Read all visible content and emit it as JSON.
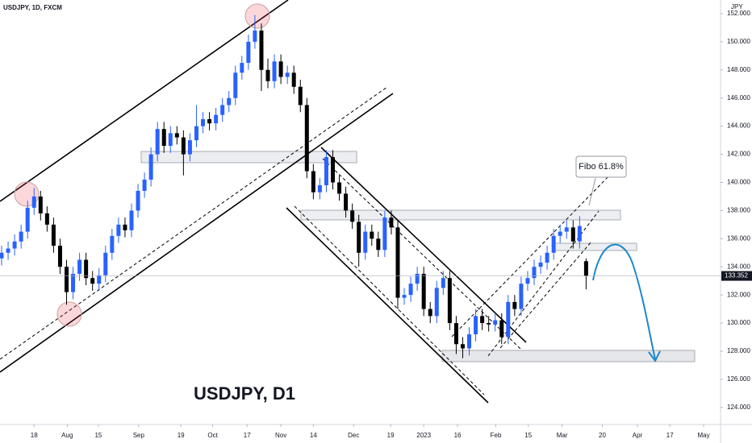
{
  "chart_data": {
    "type": "candlestick",
    "title": "USDJPY, 1D, FXCM",
    "y_axis_label": "JPY",
    "annotations": [
      "USDJPY, D1",
      "Fibo 61.8%"
    ],
    "up_color": "#2962ff",
    "down_color": "#000000",
    "open": [
      134.6,
      135.0,
      135.3,
      135.8,
      136.5,
      138.2,
      139.0,
      137.8,
      137.0,
      135.5,
      134.0,
      132.2,
      133.5,
      134.5,
      133.2,
      132.8,
      133.4,
      135.0,
      136.2,
      137.0,
      136.6,
      138.0,
      139.4,
      140.2,
      142.0,
      143.8,
      142.6,
      143.5,
      143.2,
      142.0,
      143.0,
      144.0,
      144.5,
      144.2,
      144.8,
      145.5,
      146.0,
      147.8,
      148.5,
      150.0,
      150.8,
      148.0,
      147.2,
      148.6,
      147.5,
      147.8,
      146.8,
      145.5,
      140.8,
      139.3,
      139.8,
      141.8,
      140.0,
      139.2,
      138.0,
      137.2,
      135.0,
      136.5,
      136.0,
      135.2,
      137.5,
      136.8,
      131.8,
      132.0,
      132.8,
      133.5,
      131.0,
      130.5,
      132.5,
      133.2,
      130.0,
      128.5,
      128.2,
      129.2,
      130.5,
      130.0,
      129.9,
      130.2,
      129.0,
      131.5,
      131.0,
      132.8,
      133.2,
      134.0,
      134.3,
      135.0,
      136.2,
      136.5,
      136.8,
      135.8,
      134.4
    ],
    "high": [
      135.5,
      135.8,
      136.3,
      137.0,
      138.7,
      139.6,
      139.4,
      138.3,
      137.5,
      136.0,
      134.5,
      134.0,
      135.0,
      135.0,
      133.7,
      133.9,
      135.5,
      136.7,
      137.5,
      137.5,
      138.5,
      139.9,
      140.7,
      142.5,
      144.3,
      144.3,
      144.0,
      144.0,
      143.7,
      143.5,
      145.5,
      145.0,
      145.0,
      145.3,
      146.0,
      146.5,
      148.3,
      149.0,
      150.5,
      151.9,
      151.3,
      148.8,
      149.1,
      149.1,
      148.3,
      148.3,
      147.3,
      146.0,
      141.3,
      140.3,
      142.3,
      142.3,
      140.5,
      139.7,
      138.5,
      137.7,
      137.0,
      137.0,
      136.5,
      138.0,
      138.0,
      137.3,
      132.5,
      133.3,
      134.0,
      134.0,
      131.5,
      133.0,
      133.7,
      133.7,
      130.5,
      129.0,
      129.7,
      131.0,
      131.0,
      130.5,
      130.7,
      130.7,
      132.0,
      132.0,
      133.3,
      133.7,
      134.5,
      134.8,
      135.5,
      136.7,
      137.0,
      137.3,
      137.3,
      137.6,
      134.6
    ],
    "low": [
      134.1,
      134.5,
      134.8,
      135.3,
      136.0,
      137.7,
      137.3,
      136.5,
      135.0,
      133.5,
      131.3,
      131.7,
      133.0,
      132.7,
      132.3,
      132.3,
      132.9,
      134.5,
      135.7,
      136.1,
      136.1,
      137.5,
      138.9,
      139.7,
      141.5,
      142.1,
      142.1,
      142.7,
      140.5,
      141.5,
      142.5,
      143.5,
      143.7,
      143.7,
      144.3,
      145.0,
      145.5,
      147.3,
      148.0,
      149.5,
      146.5,
      146.7,
      146.7,
      147.0,
      147.0,
      146.3,
      145.0,
      140.3,
      138.8,
      138.8,
      139.3,
      139.5,
      138.7,
      137.5,
      136.7,
      134.0,
      134.5,
      135.5,
      134.7,
      134.7,
      136.3,
      131.0,
      131.3,
      131.5,
      132.3,
      130.5,
      130.0,
      130.0,
      132.0,
      129.5,
      127.8,
      127.5,
      127.7,
      128.7,
      129.5,
      129.4,
      129.4,
      128.5,
      128.5,
      130.5,
      130.5,
      132.3,
      132.7,
      133.5,
      133.8,
      134.5,
      135.7,
      136.0,
      135.3,
      135.3,
      132.4
    ],
    "close": [
      135.0,
      135.3,
      135.8,
      136.5,
      138.2,
      139.0,
      137.8,
      137.0,
      135.5,
      134.0,
      132.2,
      133.5,
      134.5,
      133.2,
      132.8,
      133.4,
      135.0,
      136.2,
      137.0,
      136.6,
      138.0,
      139.4,
      140.2,
      142.0,
      143.8,
      142.6,
      143.5,
      143.2,
      142.0,
      143.0,
      144.0,
      144.5,
      144.2,
      144.8,
      145.5,
      146.0,
      147.8,
      148.5,
      150.0,
      150.8,
      148.0,
      147.2,
      148.6,
      147.5,
      147.8,
      146.8,
      145.5,
      140.8,
      139.3,
      139.8,
      141.8,
      140.0,
      139.2,
      138.0,
      137.2,
      135.0,
      136.5,
      136.0,
      135.2,
      137.5,
      136.8,
      131.8,
      132.0,
      132.8,
      133.5,
      131.0,
      130.5,
      132.5,
      133.2,
      130.0,
      128.5,
      128.2,
      129.2,
      130.5,
      130.0,
      129.9,
      130.2,
      129.0,
      131.5,
      131.0,
      132.8,
      133.2,
      134.0,
      134.3,
      135.0,
      136.2,
      136.5,
      136.8,
      135.8,
      136.9,
      133.352
    ],
    "last_price": 133.352,
    "xlim": [
      -0.25,
      110.7
    ],
    "xticks": [
      {
        "value": 5.0,
        "label": "18"
      },
      {
        "value": 10.1,
        "label": "Aug"
      },
      {
        "value": 14.9,
        "label": "15"
      },
      {
        "value": 21.1,
        "label": "Sep"
      },
      {
        "value": 27.6,
        "label": "19"
      },
      {
        "value": 32.5,
        "label": "Oct"
      },
      {
        "value": 37.8,
        "label": "17"
      },
      {
        "value": 43.0,
        "label": "Nov"
      },
      {
        "value": 48.0,
        "label": "14"
      },
      {
        "value": 54.2,
        "label": "Dec"
      },
      {
        "value": 59.9,
        "label": "19"
      },
      {
        "value": 65.0,
        "label": "2023"
      },
      {
        "value": 70.2,
        "label": "16"
      },
      {
        "value": 76.1,
        "label": "Feb"
      },
      {
        "value": 81.1,
        "label": "15"
      },
      {
        "value": 86.3,
        "label": "Mar"
      },
      {
        "value": 92.5,
        "label": "20"
      },
      {
        "value": 97.9,
        "label": "Apr"
      },
      {
        "value": 102.9,
        "label": "17"
      },
      {
        "value": 108.1,
        "label": "May"
      }
    ],
    "ylim": [
      122.79,
      152.97
    ],
    "yticks": [
      {
        "value": 124,
        "label": "124.000"
      },
      {
        "value": 126,
        "label": "126.000"
      },
      {
        "value": 128,
        "label": "128.000"
      },
      {
        "value": 130,
        "label": "130.000"
      },
      {
        "value": 132,
        "label": "132.000"
      },
      {
        "value": 134,
        "label": "134.000"
      },
      {
        "value": 136,
        "label": "136.000"
      },
      {
        "value": 138,
        "label": "138.000"
      },
      {
        "value": 140,
        "label": "140.000"
      },
      {
        "value": 142,
        "label": "142.000"
      },
      {
        "value": 144,
        "label": "144.000"
      },
      {
        "value": 146,
        "label": "146.000"
      },
      {
        "value": 148,
        "label": "148.000"
      },
      {
        "value": 150,
        "label": "150.000"
      },
      {
        "value": 152,
        "label": "152.000"
      }
    ]
  }
}
